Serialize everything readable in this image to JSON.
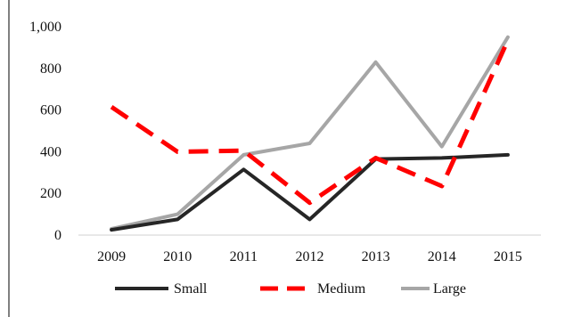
{
  "chart_data": {
    "type": "line",
    "categories": [
      "2009",
      "2010",
      "2011",
      "2012",
      "2013",
      "2014",
      "2015"
    ],
    "y_ticks": [
      "0",
      "200",
      "400",
      "600",
      "800",
      "1,000"
    ],
    "y_tick_values": [
      0,
      200,
      400,
      600,
      800,
      1000
    ],
    "ylim": [
      0,
      1000
    ],
    "grid": false,
    "legend_position": "bottom",
    "series": [
      {
        "name": "Small",
        "values": [
          25,
          75,
          315,
          75,
          365,
          370,
          385
        ],
        "color": "#262626",
        "dash": "solid"
      },
      {
        "name": "Medium",
        "values": [
          615,
          400,
          405,
          155,
          370,
          235,
          935
        ],
        "color": "#ff0000",
        "dash": "dashed"
      },
      {
        "name": "Large",
        "values": [
          30,
          100,
          385,
          440,
          830,
          425,
          950
        ],
        "color": "#a6a6a6",
        "dash": "solid"
      }
    ]
  }
}
